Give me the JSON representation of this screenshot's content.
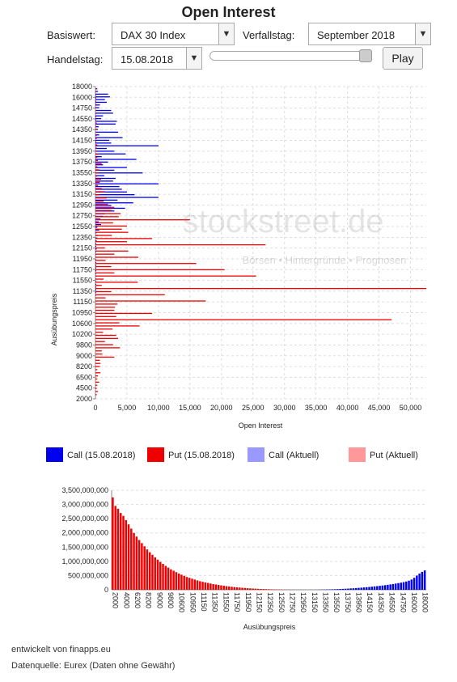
{
  "header": {
    "title": "Open Interest"
  },
  "controls": {
    "basiswert_label": "Basiswert:",
    "basiswert_value": "DAX 30 Index",
    "verfallstag_label": "Verfallstag:",
    "verfallstag_value": "September 2018",
    "handelstag_label": "Handelstag:",
    "handelstag_value": "15.08.2018",
    "play_label": "Play",
    "slider_position": 1.0
  },
  "watermark": {
    "brand": "stockstreet.de",
    "tagline": "Börsen • Hintergründe • Prognosen"
  },
  "legend": [
    {
      "label": "Call (15.08.2018)",
      "color": "#0000ee"
    },
    {
      "label": "Put (15.08.2018)",
      "color": "#ee0000"
    },
    {
      "label": "Call (Aktuell)",
      "color": "#9999ff"
    },
    {
      "label": "Put (Aktuell)",
      "color": "#ff9999"
    }
  ],
  "chart_data": [
    {
      "type": "bar",
      "orientation": "horizontal",
      "xlabel": "Open Interest",
      "ylabel": "Ausübungspreis",
      "xlim": [
        0,
        52500
      ],
      "xticks": [
        "0",
        "5,000",
        "10,000",
        "15,000",
        "20,000",
        "25,000",
        "30,000",
        "35,000",
        "40,000",
        "45,000",
        "50,000"
      ],
      "ytick_labels": [
        "18000",
        "16000",
        "14750",
        "14550",
        "14350",
        "14150",
        "13950",
        "13750",
        "13550",
        "13350",
        "13150",
        "12950",
        "12750",
        "12550",
        "12350",
        "12150",
        "11950",
        "11750",
        "11550",
        "11350",
        "11150",
        "10950",
        "10600",
        "10200",
        "9800",
        "9000",
        "8200",
        "6500",
        "4500",
        "2000"
      ],
      "grid": true,
      "series": [
        {
          "name": "Call (15.08.2018)",
          "color": "#0000ee",
          "values": [
            300,
            400,
            2000,
            2300,
            1500,
            1800,
            700,
            600,
            2500,
            2800,
            1200,
            900,
            3400,
            3200,
            500,
            400,
            3600,
            600,
            4300,
            2200,
            2500,
            10000,
            1800,
            3000,
            4800,
            1000,
            6500,
            2000,
            1200,
            5000,
            3000,
            7500,
            1400,
            3200,
            2800,
            10000,
            3800,
            4200,
            5000,
            6200,
            10000,
            3500,
            6000,
            2500,
            4700,
            3000,
            1500,
            1200,
            800,
            500,
            900,
            300,
            600,
            200,
            400,
            300,
            200,
            100,
            100,
            200,
            100,
            100,
            100,
            100,
            100,
            100,
            100,
            100,
            100,
            100,
            100,
            100,
            100,
            100,
            100,
            100,
            100,
            100
          ]
        },
        {
          "name": "Put (15.08.2018)",
          "color": "#ee0000",
          "values": [
            100,
            100,
            100,
            100,
            100,
            100,
            100,
            100,
            100,
            100,
            100,
            200,
            100,
            300,
            100,
            200,
            200,
            100,
            300,
            200,
            200,
            500,
            300,
            400,
            1000,
            300,
            600,
            500,
            300,
            900,
            700,
            400,
            1000,
            1500,
            700,
            1800,
            1300,
            2000,
            3000,
            2600,
            4000,
            3700,
            15000,
            2800,
            5000,
            4200,
            5200,
            2600,
            9000,
            5000,
            27000,
            1500,
            5200,
            3000,
            6800,
            1600,
            16000,
            2500,
            20500,
            3000,
            25500,
            1300,
            6700,
            1000,
            52500,
            2500,
            11000,
            1600,
            17500,
            3500,
            3100,
            3000,
            9000,
            3300,
            47000,
            3800,
            7000,
            2700,
            1200,
            3300,
            3600,
            1500,
            2800,
            3900,
            1000,
            1100,
            3000,
            700,
            800,
            700,
            300,
            800,
            400,
            300,
            600,
            300,
            200,
            400,
            200
          ]
        },
        {
          "name": "Call (Aktuell)",
          "color": "#9999ff",
          "values": []
        },
        {
          "name": "Put (Aktuell)",
          "color": "#ff9999",
          "values": []
        }
      ]
    },
    {
      "type": "bar",
      "xlabel": "Ausübungspreis",
      "ylabel": "",
      "ylim": [
        0,
        3500000000
      ],
      "yticks": [
        "0",
        "500,000,000",
        "1,000,000,000",
        "1,500,000,000",
        "2,000,000,000",
        "2,500,000,000",
        "3,000,000,000",
        "3,500,000,000"
      ],
      "xtick_labels": [
        "2000",
        "4000",
        "6200",
        "8200",
        "9000",
        "9800",
        "10600",
        "10950",
        "11150",
        "11350",
        "11550",
        "11750",
        "11950",
        "12150",
        "12350",
        "12550",
        "12750",
        "12950",
        "13150",
        "13350",
        "13550",
        "13750",
        "13950",
        "14150",
        "14350",
        "14550",
        "14750",
        "16000",
        "18000"
      ],
      "grid": true,
      "series": [
        {
          "name": "Put (15.08.2018)",
          "color": "#ee0000",
          "values": [
            3250000000,
            2950000000,
            2850000000,
            2700000000,
            2600000000,
            2450000000,
            2300000000,
            2150000000,
            2000000000,
            1870000000,
            1750000000,
            1640000000,
            1530000000,
            1420000000,
            1320000000,
            1230000000,
            1140000000,
            1060000000,
            980000000,
            910000000,
            840000000,
            780000000,
            720000000,
            670000000,
            620000000,
            570000000,
            530000000,
            490000000,
            450000000,
            420000000,
            390000000,
            360000000,
            330000000,
            300000000,
            280000000,
            260000000,
            240000000,
            220000000,
            200000000,
            185000000,
            170000000,
            155000000,
            140000000,
            128000000,
            116000000,
            105000000,
            95000000,
            86000000,
            78000000,
            70000000,
            63000000,
            56000000,
            50000000,
            44000000,
            39000000,
            34000000,
            30000000,
            26000000,
            22000000,
            19000000,
            16000000,
            13000000,
            11000000,
            9000000,
            7000000,
            5000000,
            4000000,
            3000000,
            2000000,
            1500000,
            1000000,
            700000,
            500000,
            300000,
            200000,
            100000,
            50000
          ]
        },
        {
          "name": "Call (15.08.2018)",
          "color": "#0000ee",
          "values": [
            0,
            0,
            0,
            0,
            0,
            0,
            0,
            0,
            0,
            0,
            0,
            0,
            0,
            0,
            0,
            0,
            0,
            0,
            0,
            0,
            0,
            0,
            0,
            0,
            0,
            0,
            0,
            0,
            0,
            0,
            0,
            0,
            0,
            0,
            0,
            0,
            0,
            0,
            0,
            0,
            0,
            0,
            0,
            0,
            0,
            0,
            0,
            0,
            0,
            0,
            0,
            0,
            0,
            0,
            0,
            0,
            0,
            0,
            0,
            0,
            0,
            0,
            0,
            0,
            0,
            0,
            0,
            0,
            0,
            0,
            0,
            0,
            0,
            0,
            0,
            0,
            0,
            2000000,
            4000000,
            6000000,
            8000000,
            11000000,
            14000000,
            17000000,
            20000000,
            24000000,
            28000000,
            32000000,
            37000000,
            42000000,
            48000000,
            54000000,
            60000000,
            67000000,
            74000000,
            82000000,
            90000000,
            99000000,
            108000000,
            118000000,
            128000000,
            139000000,
            150000000,
            162000000,
            175000000,
            188000000,
            202000000,
            217000000,
            233000000,
            250000000,
            268000000,
            290000000,
            320000000,
            360000000,
            420000000,
            500000000,
            570000000,
            630000000,
            680000000
          ]
        }
      ]
    }
  ],
  "footer": {
    "developer": "entwickelt von finapps.eu",
    "source": "Datenquelle: Eurex (Daten ohne Gewähr)"
  }
}
